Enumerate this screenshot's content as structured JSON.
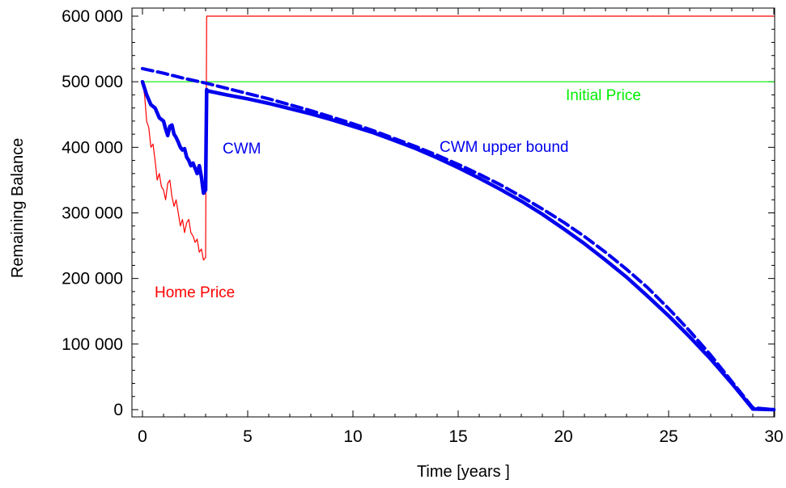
{
  "chart_data": {
    "type": "line",
    "title": "",
    "xlabel": "Time [years ]",
    "ylabel": "Remaining Balance",
    "xlim": [
      0,
      30
    ],
    "ylim": [
      0,
      600000
    ],
    "xticks": [
      0,
      5,
      10,
      15,
      20,
      25,
      30
    ],
    "xtick_labels": [
      "0",
      "5",
      "10",
      "15",
      "20",
      "25",
      "30"
    ],
    "yticks": [
      0,
      100000,
      200000,
      300000,
      400000,
      500000,
      600000
    ],
    "ytick_labels": [
      "0",
      "100 000",
      "200 000",
      "300 000",
      "400 000",
      "500 000",
      "600 000"
    ],
    "grid": false,
    "colors": {
      "home_price": "#ff0000",
      "cwm": "#0000ee",
      "initial_price": "#00ee00"
    },
    "series": [
      {
        "name": "Home Price",
        "style": "thin solid",
        "x": [
          0,
          0.1,
          0.2,
          0.3,
          0.4,
          0.5,
          0.6,
          0.7,
          0.8,
          0.9,
          1.0,
          1.1,
          1.2,
          1.3,
          1.4,
          1.5,
          1.6,
          1.7,
          1.8,
          1.9,
          2.0,
          2.1,
          2.2,
          2.3,
          2.4,
          2.5,
          2.6,
          2.7,
          2.8,
          2.9,
          3.0,
          3.05,
          3.1,
          3.2,
          30
        ],
        "y": [
          500000,
          480000,
          440000,
          430000,
          400000,
          405000,
          380000,
          350000,
          360000,
          340000,
          335000,
          320000,
          345000,
          350000,
          325000,
          310000,
          320000,
          300000,
          280000,
          290000,
          270000,
          285000,
          290000,
          270000,
          265000,
          255000,
          260000,
          240000,
          245000,
          228000,
          232000,
          600000,
          600000,
          600000,
          600000
        ]
      },
      {
        "name": "CWM",
        "style": "thick solid",
        "x": [
          0,
          0.2,
          0.4,
          0.6,
          0.8,
          1.0,
          1.1,
          1.2,
          1.3,
          1.4,
          1.5,
          1.6,
          1.7,
          1.8,
          1.9,
          2.0,
          2.1,
          2.2,
          2.3,
          2.4,
          2.5,
          2.6,
          2.7,
          2.8,
          2.9,
          3.0,
          3.05,
          3.1,
          4,
          5,
          6,
          7,
          8,
          9,
          10,
          11,
          12,
          13,
          14,
          15,
          16,
          17,
          18,
          19,
          20,
          21,
          22,
          23,
          24,
          25,
          26,
          27,
          28,
          29,
          30
        ],
        "y": [
          500000,
          480000,
          465000,
          460000,
          445000,
          440000,
          428000,
          418000,
          432000,
          434000,
          420000,
          415000,
          408000,
          400000,
          396000,
          398000,
          385000,
          380000,
          372000,
          376000,
          368000,
          360000,
          372000,
          355000,
          330000,
          335000,
          488000,
          486000,
          480000,
          474000,
          467000,
          459000,
          451000,
          442000,
          432000,
          422000,
          410000,
          398000,
          384000,
          369000,
          353000,
          336000,
          318000,
          298000,
          276000,
          253000,
          228000,
          202000,
          173000,
          143000,
          111000,
          77000,
          40000,
          1000,
          0
        ]
      },
      {
        "name": "CWM upper bound",
        "style": "thick dashed",
        "x": [
          0,
          1,
          2,
          3,
          4,
          5,
          6,
          7,
          8,
          9,
          10,
          11,
          12,
          13,
          14,
          15,
          16,
          17,
          18,
          19,
          20,
          21,
          22,
          23,
          24,
          25,
          26,
          27,
          28,
          29,
          30
        ],
        "y": [
          520000,
          513000,
          505000,
          498000,
          490000,
          482000,
          474000,
          465000,
          456000,
          446000,
          436000,
          425000,
          413000,
          401000,
          388000,
          374000,
          359000,
          343000,
          325000,
          306000,
          286000,
          264000,
          240000,
          214000,
          186000,
          154000,
          120000,
          83000,
          43000,
          3000,
          0
        ]
      },
      {
        "name": "Initial Price",
        "style": "thin solid",
        "x": [
          0,
          30
        ],
        "y": [
          500000,
          500000
        ]
      }
    ],
    "annotations": [
      {
        "text": "Home Price",
        "color": "#ff0000"
      },
      {
        "text": "CWM",
        "color": "#0000ee"
      },
      {
        "text": "CWM upper bound",
        "color": "#0000ee"
      },
      {
        "text": "Initial Price",
        "color": "#00ee00"
      }
    ]
  }
}
